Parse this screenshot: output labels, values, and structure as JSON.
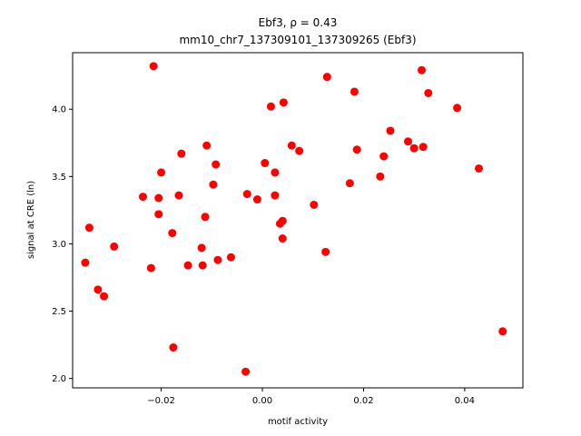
{
  "chart_data": {
    "type": "scatter",
    "title_line1": "Ebf3, ρ = 0.43",
    "title_line2": "mm10_chr7_137309101_137309265 (Ebf3)",
    "xlabel": "motif activity",
    "ylabel": "signal at CRE (ln)",
    "xlim": [
      -0.0375,
      0.0515
    ],
    "ylim": [
      1.93,
      4.42
    ],
    "xticks": [
      -0.02,
      0.0,
      0.02,
      0.04
    ],
    "xtick_labels": [
      "−0.02",
      "0.00",
      "0.02",
      "0.04"
    ],
    "yticks": [
      2.0,
      2.5,
      3.0,
      3.5,
      4.0
    ],
    "ytick_labels": [
      "2.0",
      "2.5",
      "3.0",
      "3.5",
      "4.0"
    ],
    "grid": false,
    "marker_color": "#ff0000",
    "points": [
      {
        "x": -0.0215,
        "y": 4.32
      },
      {
        "x": -0.035,
        "y": 2.86
      },
      {
        "x": -0.0342,
        "y": 3.12
      },
      {
        "x": -0.0325,
        "y": 2.66
      },
      {
        "x": -0.0313,
        "y": 2.61
      },
      {
        "x": -0.0293,
        "y": 2.98
      },
      {
        "x": -0.0236,
        "y": 3.35
      },
      {
        "x": -0.022,
        "y": 2.82
      },
      {
        "x": -0.0205,
        "y": 3.34
      },
      {
        "x": -0.0205,
        "y": 3.22
      },
      {
        "x": -0.02,
        "y": 3.53
      },
      {
        "x": -0.0178,
        "y": 3.08
      },
      {
        "x": -0.0176,
        "y": 2.23
      },
      {
        "x": -0.0165,
        "y": 3.36
      },
      {
        "x": -0.016,
        "y": 3.67
      },
      {
        "x": -0.0147,
        "y": 2.84
      },
      {
        "x": -0.012,
        "y": 2.97
      },
      {
        "x": -0.0118,
        "y": 2.84
      },
      {
        "x": -0.0113,
        "y": 3.2
      },
      {
        "x": -0.011,
        "y": 3.73
      },
      {
        "x": -0.0097,
        "y": 3.44
      },
      {
        "x": -0.0092,
        "y": 3.59
      },
      {
        "x": -0.0088,
        "y": 2.88
      },
      {
        "x": -0.0062,
        "y": 2.9
      },
      {
        "x": -0.0033,
        "y": 2.05
      },
      {
        "x": -0.003,
        "y": 3.37
      },
      {
        "x": -0.001,
        "y": 3.33
      },
      {
        "x": 0.0005,
        "y": 3.6
      },
      {
        "x": 0.0017,
        "y": 4.02
      },
      {
        "x": 0.0025,
        "y": 3.53
      },
      {
        "x": 0.0025,
        "y": 3.36
      },
      {
        "x": 0.0035,
        "y": 3.15
      },
      {
        "x": 0.004,
        "y": 3.17
      },
      {
        "x": 0.004,
        "y": 3.04
      },
      {
        "x": 0.0042,
        "y": 4.05
      },
      {
        "x": 0.0058,
        "y": 3.73
      },
      {
        "x": 0.0073,
        "y": 3.69
      },
      {
        "x": 0.0102,
        "y": 3.29
      },
      {
        "x": 0.0125,
        "y": 2.94
      },
      {
        "x": 0.0128,
        "y": 4.24
      },
      {
        "x": 0.0173,
        "y": 3.45
      },
      {
        "x": 0.0182,
        "y": 4.13
      },
      {
        "x": 0.0187,
        "y": 3.7
      },
      {
        "x": 0.0233,
        "y": 3.5
      },
      {
        "x": 0.024,
        "y": 3.65
      },
      {
        "x": 0.0253,
        "y": 3.84
      },
      {
        "x": 0.0288,
        "y": 3.76
      },
      {
        "x": 0.03,
        "y": 3.71
      },
      {
        "x": 0.0315,
        "y": 4.29
      },
      {
        "x": 0.0318,
        "y": 3.72
      },
      {
        "x": 0.0328,
        "y": 4.12
      },
      {
        "x": 0.0385,
        "y": 4.01
      },
      {
        "x": 0.0428,
        "y": 3.56
      },
      {
        "x": 0.0475,
        "y": 2.35
      }
    ]
  }
}
